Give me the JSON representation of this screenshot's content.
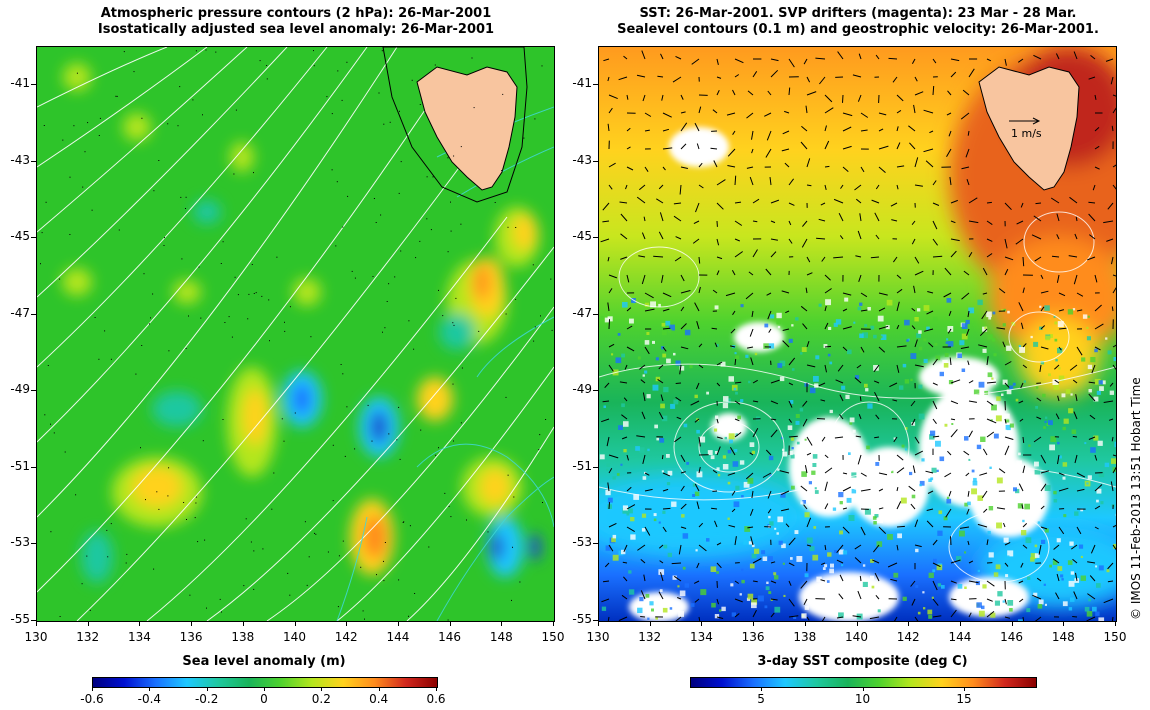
{
  "left_panel": {
    "title_line1": "Atmospheric pressure contours (2 hPa): 26-Mar-2001",
    "title_line2": "Isostatically adjusted sea level anomaly: 26-Mar-2001",
    "colorbar_title": "Sea level anomaly (m)",
    "colorbar_ticks": [
      "-0.6",
      "-0.4",
      "-0.2",
      "0",
      "0.2",
      "0.4",
      "0.6"
    ],
    "colorbar_range": [
      -0.6,
      0.6
    ]
  },
  "right_panel": {
    "title_line1": "SST: 26-Mar-2001. SVP drifters (magenta): 23 Mar - 28 Mar.",
    "title_line2": "Sealevel contours (0.1 m) and geostrophic velocity: 26-Mar-2001.",
    "colorbar_title": "3-day SST composite (deg C)",
    "colorbar_ticks": [
      "5",
      "10",
      "15"
    ],
    "colorbar_range": [
      1.5,
      18.5
    ],
    "velocity_scale_label": "1 m/s"
  },
  "axes": {
    "lon_range": [
      130,
      150
    ],
    "lat_range": [
      -55,
      -40
    ],
    "lat_ticks": [
      "-41",
      "-43",
      "-45",
      "-47",
      "-49",
      "-51",
      "-53",
      "-55"
    ],
    "lon_ticks": [
      "130",
      "132",
      "134",
      "136",
      "138",
      "140",
      "142",
      "144",
      "146",
      "148",
      "150"
    ]
  },
  "copyright": "© IMOS 11-Feb-2013 13:51 Hobart Time",
  "colors": {
    "land": "#f8c59f",
    "sla_background": "#2ec42a",
    "pressure_contour": "#ffffff",
    "sla_contour": "#40d8d8",
    "velocity_arrow": "#000000"
  }
}
